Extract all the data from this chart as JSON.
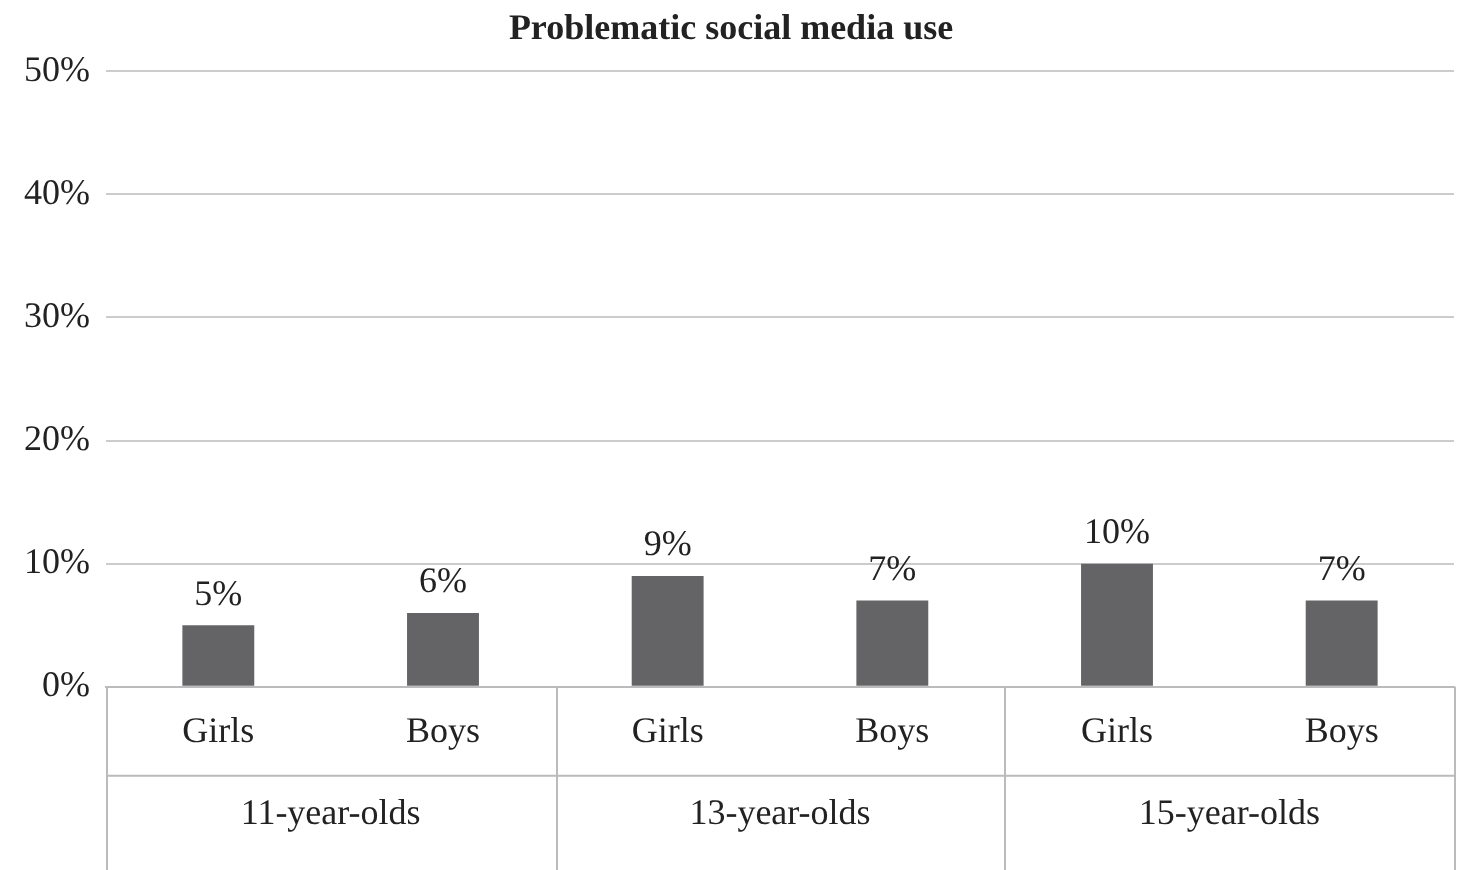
{
  "chart_data": {
    "type": "bar",
    "title": "Problematic social media use",
    "categories": [
      "Girls",
      "Boys",
      "Girls",
      "Boys",
      "Girls",
      "Boys"
    ],
    "values": [
      5,
      6,
      9,
      7,
      10,
      7
    ],
    "color": "#646467",
    "value_labels": [
      "5%",
      "6%",
      "9%",
      "7%",
      "10%",
      "7%"
    ],
    "annotations": [
      "11-year-olds",
      "13-year-olds",
      "15-year-olds"
    ],
    "ylim": [
      0,
      50
    ],
    "yticks": [
      {
        "value": 0,
        "label": "0%"
      },
      {
        "value": 10,
        "label": "10%"
      },
      {
        "value": 20,
        "label": "20%"
      },
      {
        "value": 30,
        "label": "30%"
      },
      {
        "value": 40,
        "label": "40%"
      },
      {
        "value": 50,
        "label": "50%"
      }
    ],
    "grid": "y",
    "legend": false
  }
}
